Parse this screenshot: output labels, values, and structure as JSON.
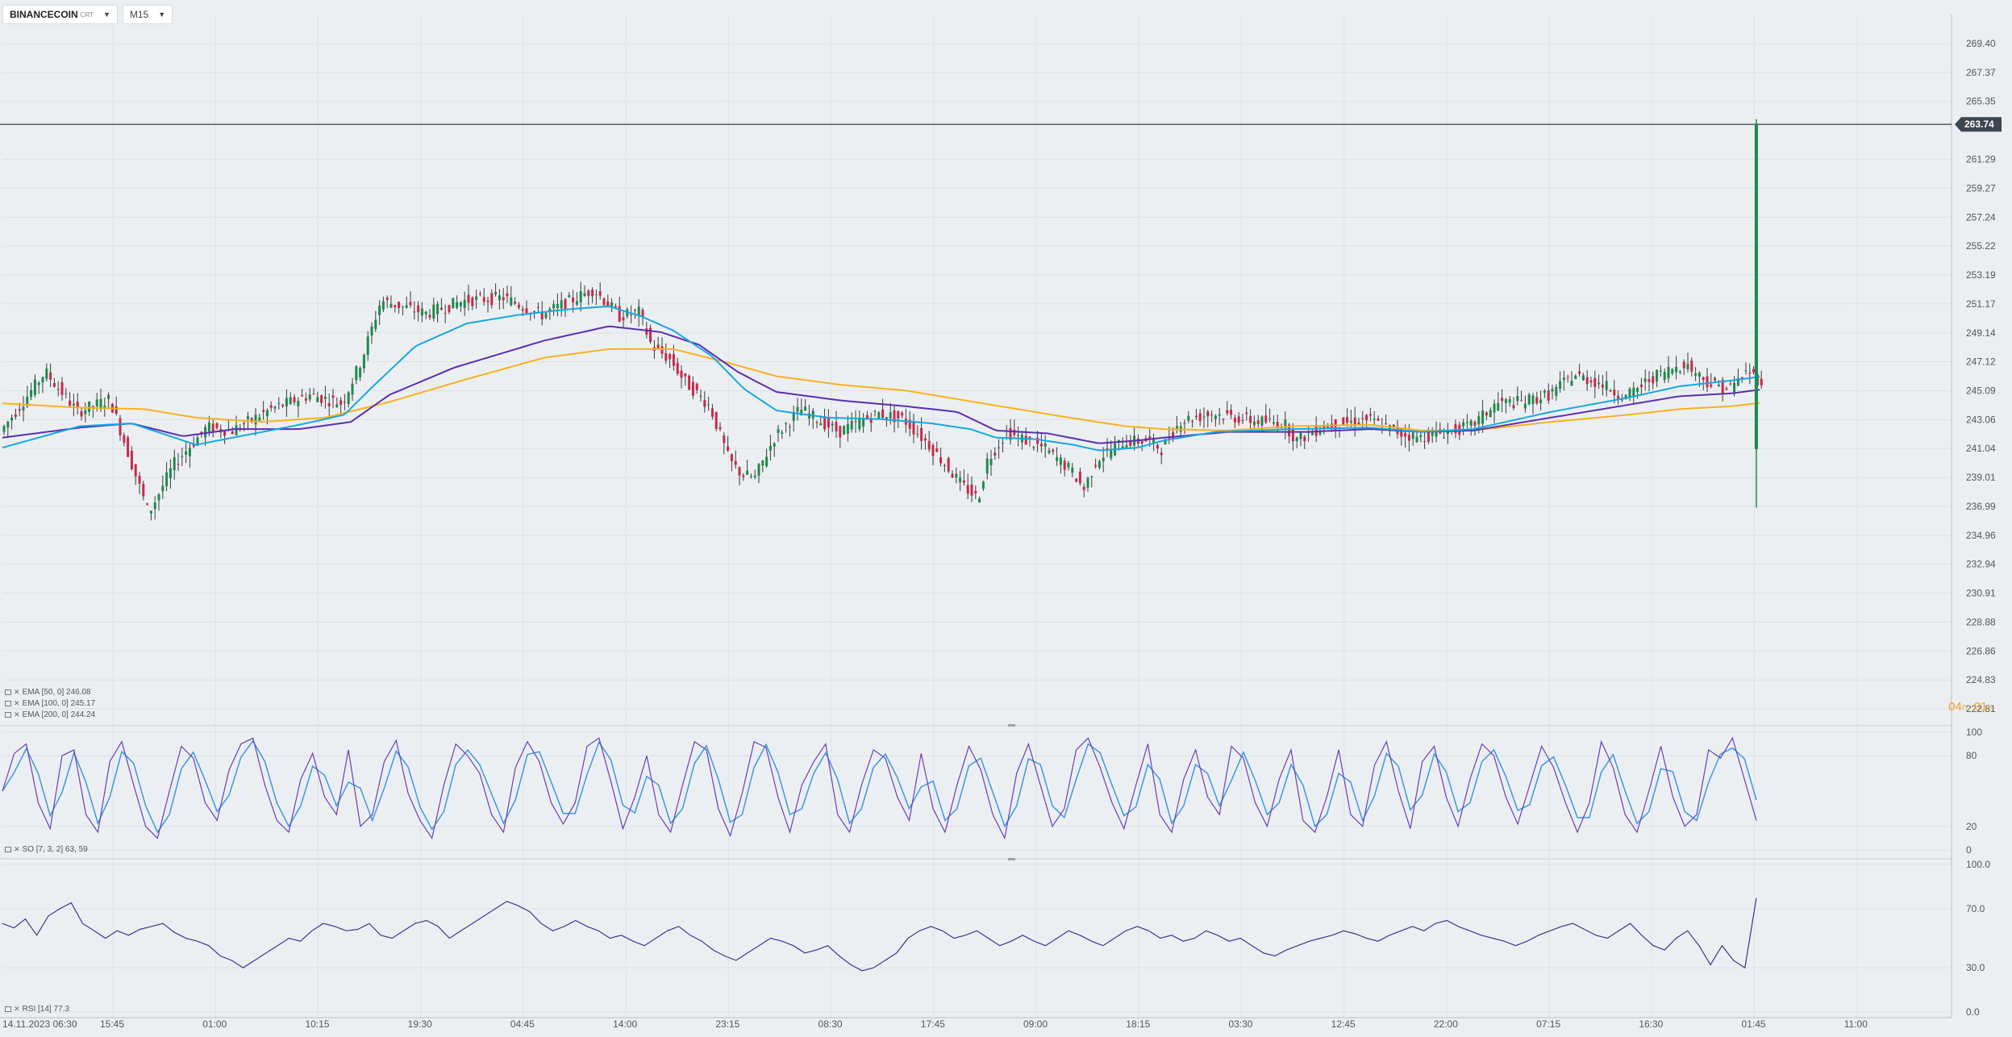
{
  "toolbar": {
    "symbol": "BINANCECOIN",
    "symbol_suffix": "CRT",
    "timeframe": "M15"
  },
  "timer": {
    "minutes": "04",
    "m_unit": "m",
    "seconds": "01",
    "s_unit": "s"
  },
  "legends": {
    "ema50": "EMA [50, 0] 246.08",
    "ema100": "EMA [100, 0] 245.17",
    "ema200": "EMA [200, 0] 244.24",
    "so": "SO [7, 3, 2] 63, 59",
    "rsi": "RSI [14] 77.3"
  },
  "chart_data": [
    {
      "type": "candlestick",
      "ylim": [
        222.81,
        269.4
      ],
      "yticks": [
        "269.40",
        "267.37",
        "265.35",
        "261.29",
        "259.27",
        "257.24",
        "255.22",
        "253.19",
        "251.17",
        "249.14",
        "247.12",
        "245.09",
        "243.06",
        "241.04",
        "239.01",
        "236.99",
        "234.96",
        "232.94",
        "230.91",
        "228.88",
        "226.86",
        "224.83",
        "222.81"
      ],
      "last_price": "263.74",
      "xticks": [
        "14.11.2023  06:30",
        "15:45",
        "01:00",
        "10:15",
        "19:30",
        "04:45",
        "14:00",
        "23:15",
        "08:30",
        "17:45",
        "09:00",
        "18:15",
        "03:30",
        "12:45",
        "22:00",
        "07:15",
        "16:30",
        "01:45",
        "11:00"
      ],
      "price_path": [
        [
          0,
          242.2
        ],
        [
          35,
          246.4
        ],
        [
          60,
          243.6
        ],
        [
          85,
          244.5
        ],
        [
          115,
          236.5
        ],
        [
          135,
          240.0
        ],
        [
          160,
          242.5
        ],
        [
          180,
          242.3
        ],
        [
          210,
          243.8
        ],
        [
          240,
          244.8
        ],
        [
          265,
          244.2
        ],
        [
          280,
          247.2
        ],
        [
          295,
          251.4
        ],
        [
          330,
          250.5
        ],
        [
          360,
          251.4
        ],
        [
          390,
          251.6
        ],
        [
          420,
          250.4
        ],
        [
          460,
          252.2
        ],
        [
          480,
          250.3
        ],
        [
          495,
          250.6
        ],
        [
          505,
          248.2
        ],
        [
          520,
          247.2
        ],
        [
          530,
          245.8
        ],
        [
          550,
          244.0
        ],
        [
          565,
          240.2
        ],
        [
          575,
          239.2
        ],
        [
          585,
          239.0
        ],
        [
          600,
          241.8
        ],
        [
          620,
          243.8
        ],
        [
          650,
          242.2
        ],
        [
          680,
          243.5
        ],
        [
          700,
          243.1
        ],
        [
          720,
          241.3
        ],
        [
          745,
          238.5
        ],
        [
          758,
          237.5
        ],
        [
          765,
          240.2
        ],
        [
          780,
          242.2
        ],
        [
          810,
          241.0
        ],
        [
          830,
          239.5
        ],
        [
          840,
          238.2
        ],
        [
          850,
          240.3
        ],
        [
          870,
          241.5
        ],
        [
          890,
          241.6
        ],
        [
          900,
          241.0
        ],
        [
          915,
          243.0
        ],
        [
          940,
          243.5
        ],
        [
          970,
          243.0
        ],
        [
          995,
          242.8
        ],
        [
          1005,
          241.6
        ],
        [
          1025,
          242.6
        ],
        [
          1060,
          243.1
        ],
        [
          1085,
          242.1
        ],
        [
          1100,
          241.8
        ],
        [
          1120,
          242.2
        ],
        [
          1140,
          242.6
        ],
        [
          1160,
          244.2
        ],
        [
          1180,
          244.3
        ],
        [
          1200,
          244.8
        ],
        [
          1220,
          246.2
        ],
        [
          1240,
          245.6
        ],
        [
          1260,
          244.6
        ],
        [
          1280,
          246.0
        ],
        [
          1305,
          247.0
        ],
        [
          1325,
          245.6
        ],
        [
          1340,
          245.2
        ],
        [
          1355,
          246.5
        ],
        [
          1363,
          245.8
        ]
      ],
      "ema50_path": [
        [
          0,
          241.1
        ],
        [
          60,
          242.6
        ],
        [
          100,
          242.8
        ],
        [
          130,
          241.9
        ],
        [
          150,
          241.3
        ],
        [
          190,
          242.0
        ],
        [
          230,
          242.7
        ],
        [
          265,
          243.4
        ],
        [
          285,
          245.2
        ],
        [
          320,
          248.2
        ],
        [
          360,
          249.8
        ],
        [
          400,
          250.4
        ],
        [
          440,
          250.8
        ],
        [
          470,
          251.0
        ],
        [
          495,
          250.3
        ],
        [
          520,
          249.3
        ],
        [
          550,
          247.5
        ],
        [
          575,
          245.2
        ],
        [
          600,
          243.7
        ],
        [
          640,
          243.2
        ],
        [
          680,
          243.1
        ],
        [
          720,
          242.8
        ],
        [
          750,
          242.4
        ],
        [
          770,
          241.8
        ],
        [
          800,
          241.7
        ],
        [
          830,
          241.3
        ],
        [
          850,
          240.9
        ],
        [
          880,
          241.1
        ],
        [
          900,
          241.6
        ],
        [
          940,
          242.2
        ],
        [
          1000,
          242.4
        ],
        [
          1060,
          242.5
        ],
        [
          1100,
          242.2
        ],
        [
          1140,
          242.4
        ],
        [
          1200,
          243.6
        ],
        [
          1260,
          244.6
        ],
        [
          1300,
          245.4
        ],
        [
          1340,
          245.8
        ],
        [
          1363,
          246.08
        ]
      ],
      "ema100_path": [
        [
          0,
          241.8
        ],
        [
          60,
          242.5
        ],
        [
          100,
          242.8
        ],
        [
          140,
          241.9
        ],
        [
          180,
          242.4
        ],
        [
          230,
          242.4
        ],
        [
          270,
          242.9
        ],
        [
          300,
          244.8
        ],
        [
          350,
          246.7
        ],
        [
          420,
          248.6
        ],
        [
          470,
          249.6
        ],
        [
          510,
          249.2
        ],
        [
          540,
          248.3
        ],
        [
          570,
          246.4
        ],
        [
          600,
          245.0
        ],
        [
          650,
          244.4
        ],
        [
          700,
          244.0
        ],
        [
          740,
          243.6
        ],
        [
          770,
          242.3
        ],
        [
          810,
          242.1
        ],
        [
          850,
          241.4
        ],
        [
          880,
          241.6
        ],
        [
          900,
          241.8
        ],
        [
          950,
          242.2
        ],
        [
          1010,
          242.2
        ],
        [
          1060,
          242.4
        ],
        [
          1100,
          242.2
        ],
        [
          1140,
          242.3
        ],
        [
          1200,
          243.2
        ],
        [
          1260,
          244.1
        ],
        [
          1300,
          244.7
        ],
        [
          1340,
          244.9
        ],
        [
          1363,
          245.17
        ]
      ],
      "ema200_path": [
        [
          0,
          244.2
        ],
        [
          60,
          243.9
        ],
        [
          110,
          243.8
        ],
        [
          150,
          243.2
        ],
        [
          200,
          242.9
        ],
        [
          250,
          243.2
        ],
        [
          300,
          244.3
        ],
        [
          360,
          245.9
        ],
        [
          420,
          247.4
        ],
        [
          470,
          248.0
        ],
        [
          520,
          248.0
        ],
        [
          560,
          247.1
        ],
        [
          600,
          246.1
        ],
        [
          650,
          245.5
        ],
        [
          700,
          245.1
        ],
        [
          760,
          244.2
        ],
        [
          820,
          243.3
        ],
        [
          870,
          242.6
        ],
        [
          900,
          242.4
        ],
        [
          950,
          242.3
        ],
        [
          1000,
          242.6
        ],
        [
          1060,
          242.7
        ],
        [
          1100,
          242.3
        ],
        [
          1140,
          242.3
        ],
        [
          1200,
          242.9
        ],
        [
          1260,
          243.4
        ],
        [
          1300,
          243.8
        ],
        [
          1340,
          244.0
        ],
        [
          1363,
          244.24
        ]
      ],
      "last_bar": {
        "open": 241.0,
        "high": 264.1,
        "low": 236.9,
        "close": 263.74
      }
    },
    {
      "type": "line",
      "ylim": [
        0,
        100
      ],
      "yticks": [
        "100",
        "80",
        "20",
        "0"
      ],
      "series": [
        {
          "values": [
            50,
            82,
            90,
            40,
            18,
            80,
            85,
            30,
            15,
            75,
            92,
            55,
            20,
            10,
            50,
            88,
            78,
            40,
            25,
            68,
            90,
            95,
            55,
            25,
            15,
            60,
            82,
            45,
            30,
            85,
            20,
            30,
            75,
            93,
            48,
            25,
            10,
            55,
            90,
            80,
            65,
            30,
            15,
            70,
            92,
            75,
            40,
            22,
            40,
            88,
            95,
            58,
            18,
            45,
            80,
            30,
            15,
            55,
            92,
            85,
            35,
            12,
            48,
            92,
            87,
            45,
            15,
            55,
            75,
            90,
            30,
            15,
            55,
            85,
            78,
            45,
            25,
            82,
            35,
            15,
            55,
            88,
            68,
            30,
            10,
            65,
            90,
            55,
            20,
            35,
            85,
            95,
            70,
            40,
            18,
            55,
            90,
            30,
            15,
            60,
            85,
            45,
            30,
            88,
            78,
            40,
            20,
            60,
            85,
            25,
            15,
            45,
            85,
            30,
            20,
            72,
            92,
            50,
            18,
            75,
            88,
            45,
            20,
            60,
            90,
            80,
            45,
            22,
            55,
            88,
            70,
            40,
            15,
            40,
            92,
            70,
            30,
            15,
            50,
            88,
            45,
            20,
            30,
            85,
            78,
            95,
            60,
            25
          ]
        }
      ]
    },
    {
      "type": "line",
      "ylim": [
        0,
        100
      ],
      "yticks": [
        "100.0",
        "70.0",
        "30.0",
        "0.0"
      ],
      "series": [
        {
          "values": [
            60,
            57,
            63,
            52,
            65,
            70,
            74,
            60,
            55,
            50,
            55,
            52,
            56,
            58,
            60,
            54,
            50,
            48,
            45,
            38,
            35,
            30,
            35,
            40,
            45,
            50,
            48,
            55,
            60,
            58,
            55,
            56,
            60,
            52,
            50,
            55,
            60,
            62,
            58,
            50,
            55,
            60,
            65,
            70,
            75,
            72,
            68,
            60,
            55,
            58,
            62,
            58,
            55,
            50,
            52,
            48,
            45,
            50,
            55,
            58,
            52,
            48,
            42,
            38,
            35,
            40,
            45,
            50,
            48,
            45,
            40,
            42,
            45,
            38,
            32,
            28,
            30,
            35,
            40,
            50,
            55,
            58,
            55,
            50,
            52,
            55,
            50,
            45,
            48,
            52,
            48,
            45,
            50,
            55,
            52,
            48,
            45,
            50,
            55,
            58,
            55,
            50,
            52,
            48,
            50,
            55,
            52,
            48,
            50,
            45,
            40,
            38,
            42,
            45,
            48,
            50,
            52,
            55,
            53,
            50,
            48,
            52,
            55,
            58,
            55,
            60,
            62,
            58,
            55,
            52,
            50,
            48,
            45,
            48,
            52,
            55,
            58,
            60,
            56,
            52,
            50,
            55,
            60,
            52,
            45,
            42,
            50,
            55,
            45,
            32,
            45,
            35,
            30,
            77.3
          ]
        }
      ]
    }
  ]
}
